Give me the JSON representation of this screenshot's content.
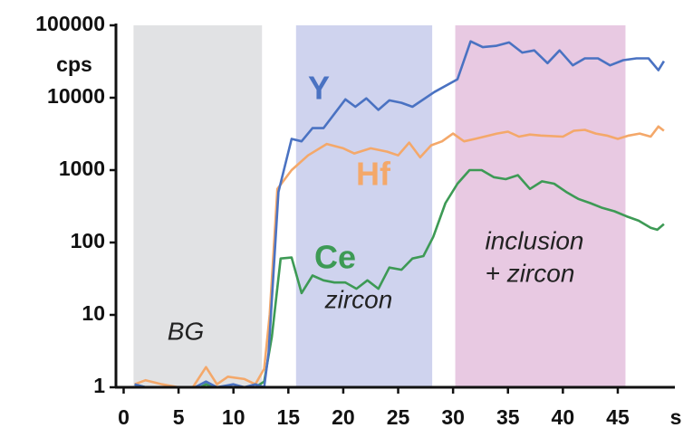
{
  "chart_data": {
    "type": "line",
    "log_y": true,
    "xlabel": "s",
    "ylabel": "cps",
    "xlim": [
      -0.7,
      50.2
    ],
    "xticks": [
      0,
      5,
      10,
      15,
      20,
      25,
      30,
      35,
      40,
      45
    ],
    "ylim": [
      1,
      100000
    ],
    "yticks": [
      1,
      10,
      100,
      1000,
      10000,
      100000
    ],
    "regions": [
      {
        "x0": 0.9,
        "x1": 12.6,
        "color": "#e1e2e4"
      },
      {
        "x0": 15.7,
        "x1": 28.1,
        "color": "#cfd3ee"
      },
      {
        "x0": 30.2,
        "x1": 45.7,
        "color": "#e8c9e2"
      }
    ],
    "annotations": [
      "BG",
      "zircon",
      "inclusion",
      "+ zircon"
    ],
    "series": [
      {
        "name": "Y",
        "color": "#4a72c2",
        "x": [
          1,
          2,
          3.5,
          5,
          6.5,
          7.5,
          8.5,
          10,
          11,
          12,
          12.8,
          13.2,
          14.1,
          15.3,
          16.2,
          17.2,
          18.2,
          19.2,
          20.2,
          21.1,
          22.1,
          23.2,
          24.2,
          25.3,
          26.3,
          28.3,
          30.4,
          31.6,
          32.7,
          33.9,
          35.1,
          36.3,
          37.4,
          38.6,
          39.7,
          40.9,
          42,
          43.2,
          44.3,
          45.5,
          46.7,
          47.8,
          48.7,
          49.2
        ],
        "values": [
          1.1,
          1,
          1,
          1,
          1,
          1.2,
          1,
          1.1,
          1,
          1.1,
          1,
          3,
          500,
          2700,
          2500,
          3800,
          3800,
          6000,
          9500,
          7500,
          9800,
          6800,
          9200,
          8500,
          7500,
          12000,
          18000,
          60000,
          50000,
          52000,
          58000,
          42000,
          45000,
          30000,
          45000,
          28000,
          35000,
          35000,
          28000,
          33000,
          35000,
          35000,
          24000,
          32000
        ]
      },
      {
        "name": "Hf",
        "color": "#f4a86a",
        "x": [
          1,
          2,
          3.5,
          5,
          6.3,
          7.5,
          8.5,
          9.5,
          11,
          12,
          12.8,
          13.3,
          14,
          15.3,
          16.8,
          18.5,
          20,
          21,
          22.5,
          24,
          25,
          26,
          27,
          28,
          29,
          30,
          31,
          32,
          34,
          35,
          36,
          37,
          38,
          40,
          41,
          42,
          43,
          44,
          45,
          46,
          47,
          48,
          48.7,
          49.2
        ],
        "values": [
          1.1,
          1.25,
          1.1,
          1,
          1,
          1.9,
          1.1,
          1.4,
          1.3,
          1.1,
          1.8,
          10,
          550,
          1000,
          1600,
          2300,
          2000,
          1700,
          2000,
          1800,
          1600,
          2400,
          1500,
          2200,
          2500,
          3200,
          2500,
          2700,
          3200,
          3400,
          2900,
          3100,
          3000,
          2900,
          3500,
          3600,
          3200,
          3000,
          2700,
          3000,
          3200,
          2900,
          4000,
          3500
        ]
      },
      {
        "name": "Ce",
        "color": "#3d9a55",
        "x": [
          1,
          2,
          3.5,
          5,
          7,
          7.5,
          8.5,
          10,
          11,
          12,
          12.8,
          13.5,
          14.3,
          15.3,
          16.2,
          17.2,
          18.2,
          19.2,
          20.2,
          21.2,
          22.2,
          23.2,
          24.2,
          25.3,
          26.3,
          27.3,
          28.2,
          29.3,
          30.4,
          31.5,
          32.6,
          33.7,
          34.8,
          35.9,
          37,
          38.1,
          39.2,
          40.3,
          41.4,
          42.5,
          43.6,
          44.7,
          45.8,
          46.9,
          48,
          48.6,
          49.2
        ],
        "values": [
          1.1,
          1,
          1,
          1,
          1,
          1.1,
          1,
          1,
          1,
          1,
          1.2,
          5,
          60,
          62,
          20,
          35,
          30,
          28,
          28,
          23,
          30,
          23,
          45,
          42,
          60,
          65,
          120,
          350,
          650,
          1000,
          1000,
          800,
          750,
          850,
          550,
          700,
          650,
          500,
          400,
          350,
          300,
          270,
          230,
          200,
          160,
          150,
          180
        ]
      }
    ]
  }
}
